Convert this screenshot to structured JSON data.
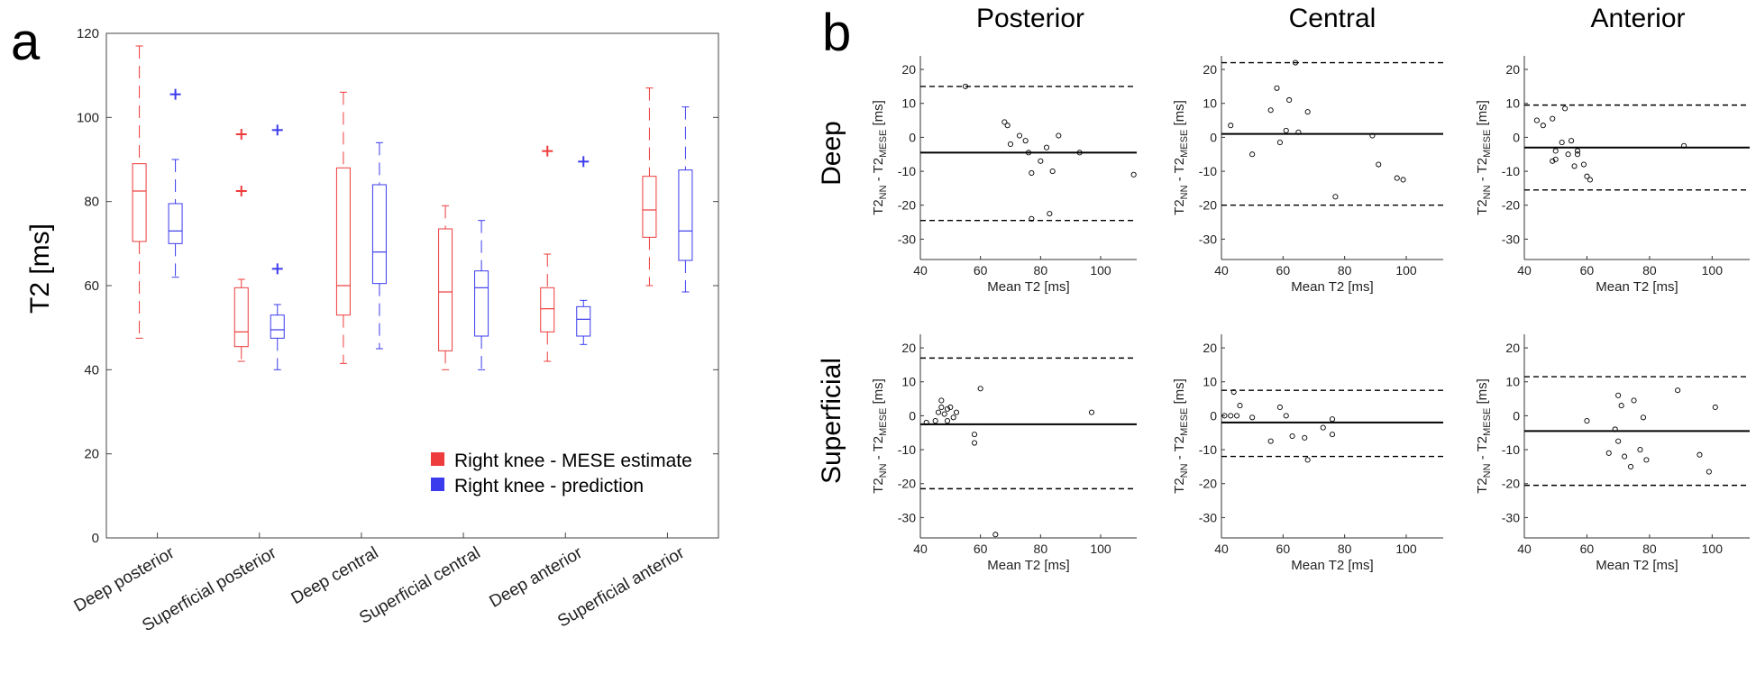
{
  "colors": {
    "mese": "#ee3b3b",
    "prediction": "#3b3bee",
    "ink": "#000000"
  },
  "chart_data": [
    {
      "type": "box",
      "panel_label": "a",
      "title": "",
      "xlabel": "",
      "ylabel": "T2 [ms]",
      "ylim": [
        0,
        120
      ],
      "yticks": [
        0,
        20,
        40,
        60,
        80,
        100,
        120
      ],
      "categories": [
        "Deep posterior",
        "Superficial posterior",
        "Deep central",
        "Superficial central",
        "Deep anterior",
        "Superficial anterior"
      ],
      "legend": {
        "placement": "bottom-right",
        "entries": [
          "Right knee - MESE estimate",
          "Right knee - prediction"
        ]
      },
      "series": [
        {
          "name": "Right knee - MESE estimate",
          "color": "#ee3b3b",
          "boxes": [
            {
              "whisker_low": 47.5,
              "q1": 70.5,
              "median": 82.5,
              "q3": 89,
              "whisker_high": 117,
              "outliers": []
            },
            {
              "whisker_low": 42,
              "q1": 45.5,
              "median": 49,
              "q3": 59.5,
              "whisker_high": 61.5,
              "outliers": [
                96,
                82.5
              ]
            },
            {
              "whisker_low": 41.5,
              "q1": 53,
              "median": 60,
              "q3": 88,
              "whisker_high": 106,
              "outliers": []
            },
            {
              "whisker_low": 40,
              "q1": 44.5,
              "median": 58.5,
              "q3": 73.5,
              "whisker_high": 79,
              "outliers": []
            },
            {
              "whisker_low": 42,
              "q1": 49,
              "median": 54.5,
              "q3": 59.5,
              "whisker_high": 67.5,
              "outliers": [
                92
              ]
            },
            {
              "whisker_low": 60,
              "q1": 71.5,
              "median": 78,
              "q3": 86,
              "whisker_high": 107,
              "outliers": []
            }
          ]
        },
        {
          "name": "Right knee - prediction",
          "color": "#3b3bee",
          "boxes": [
            {
              "whisker_low": 62,
              "q1": 70,
              "median": 73,
              "q3": 79.5,
              "whisker_high": 90,
              "outliers": [
                105.5
              ]
            },
            {
              "whisker_low": 40,
              "q1": 47.5,
              "median": 49.5,
              "q3": 53,
              "whisker_high": 55.5,
              "outliers": [
                97,
                64
              ]
            },
            {
              "whisker_low": 45,
              "q1": 60.5,
              "median": 68,
              "q3": 84,
              "whisker_high": 94,
              "outliers": []
            },
            {
              "whisker_low": 40,
              "q1": 48,
              "median": 59.5,
              "q3": 63.5,
              "whisker_high": 75.5,
              "outliers": []
            },
            {
              "whisker_low": 46,
              "q1": 48,
              "median": 52,
              "q3": 55,
              "whisker_high": 56.5,
              "outliers": [
                89.5
              ]
            },
            {
              "whisker_low": 58.5,
              "q1": 66,
              "median": 73,
              "q3": 87.5,
              "whisker_high": 102.5,
              "outliers": []
            }
          ]
        }
      ]
    },
    {
      "type": "scatter",
      "panel_label": "b",
      "subtype": "bland-altman",
      "xlabel": "Mean T2 [ms]",
      "ylabel": "T2NN - T2MESE [ms]",
      "ylabel_parts": {
        "lhs": "T2",
        "lhs_sub": "NN",
        "minus": " - T2",
        "rhs_sub": "MESE",
        "unit": " [ms]"
      },
      "xlim": [
        40,
        112
      ],
      "ylim": [
        -36,
        24
      ],
      "xticks": [
        40,
        60,
        80,
        100
      ],
      "yticks": [
        -30,
        -20,
        -10,
        0,
        10,
        20
      ],
      "columns": [
        "Posterior",
        "Central",
        "Anterior"
      ],
      "rows": [
        "Deep",
        "Superficial"
      ],
      "panels": [
        {
          "row": "Deep",
          "column": "Posterior",
          "mean": -4.5,
          "loa": [
            15,
            -24.5
          ],
          "points": [
            [
              55,
              15
            ],
            [
              68,
              4.5
            ],
            [
              69,
              3.5
            ],
            [
              70,
              -2
            ],
            [
              73,
              0.5
            ],
            [
              75,
              -1
            ],
            [
              76,
              -4.5
            ],
            [
              77,
              -10.5
            ],
            [
              77,
              -24
            ],
            [
              80,
              -7
            ],
            [
              82,
              -3
            ],
            [
              83,
              -22.5
            ],
            [
              84,
              -10
            ],
            [
              86,
              0.5
            ],
            [
              93,
              -4.5
            ],
            [
              111,
              -11
            ]
          ]
        },
        {
          "row": "Deep",
          "column": "Central",
          "mean": 1,
          "loa": [
            22,
            -20
          ],
          "points": [
            [
              43,
              3.5
            ],
            [
              50,
              -5
            ],
            [
              56,
              8
            ],
            [
              58,
              14.5
            ],
            [
              59,
              -1.5
            ],
            [
              61,
              2
            ],
            [
              62,
              11
            ],
            [
              64,
              22
            ],
            [
              65,
              1.5
            ],
            [
              68,
              7.5
            ],
            [
              77,
              -17.5
            ],
            [
              89,
              0.5
            ],
            [
              91,
              -8
            ],
            [
              97,
              -12
            ],
            [
              99,
              -12.5
            ]
          ]
        },
        {
          "row": "Deep",
          "column": "Anterior",
          "mean": -3,
          "loa": [
            9.5,
            -15.5
          ],
          "points": [
            [
              44,
              5
            ],
            [
              46,
              3.5
            ],
            [
              49,
              5.5
            ],
            [
              49,
              -7
            ],
            [
              50,
              -4
            ],
            [
              50,
              -6.5
            ],
            [
              52,
              -1.5
            ],
            [
              53,
              8.5
            ],
            [
              54,
              -5
            ],
            [
              55,
              -1
            ],
            [
              56,
              -8.5
            ],
            [
              57,
              -4
            ],
            [
              57,
              -5
            ],
            [
              59,
              -8
            ],
            [
              60,
              -11.5
            ],
            [
              61,
              -12.5
            ],
            [
              91,
              -2.5
            ]
          ]
        },
        {
          "row": "Superficial",
          "column": "Posterior",
          "mean": -2.5,
          "loa": [
            17,
            -21.5
          ],
          "points": [
            [
              42,
              -2
            ],
            [
              45,
              -1.5
            ],
            [
              46,
              1
            ],
            [
              47,
              4.5
            ],
            [
              47,
              2.5
            ],
            [
              48,
              0.5
            ],
            [
              49,
              2
            ],
            [
              49,
              -1.5
            ],
            [
              50,
              2.5
            ],
            [
              51,
              -0.5
            ],
            [
              52,
              1
            ],
            [
              58,
              -5.5
            ],
            [
              58,
              -8
            ],
            [
              60,
              8
            ],
            [
              65,
              -35
            ],
            [
              97,
              1
            ]
          ]
        },
        {
          "row": "Superficial",
          "column": "Central",
          "mean": -2,
          "loa": [
            7.5,
            -12
          ],
          "points": [
            [
              41,
              0
            ],
            [
              43,
              0
            ],
            [
              44,
              7
            ],
            [
              45,
              0
            ],
            [
              46,
              3
            ],
            [
              50,
              -0.5
            ],
            [
              56,
              -7.5
            ],
            [
              59,
              2.5
            ],
            [
              61,
              0
            ],
            [
              63,
              -6
            ],
            [
              67,
              -6.5
            ],
            [
              68,
              -13
            ],
            [
              73,
              -3.5
            ],
            [
              76,
              -5.5
            ],
            [
              76,
              -1
            ]
          ]
        },
        {
          "row": "Superficial",
          "column": "Anterior",
          "mean": -4.5,
          "loa": [
            11.5,
            -20.5
          ],
          "points": [
            [
              60,
              -1.5
            ],
            [
              67,
              -11
            ],
            [
              69,
              -4
            ],
            [
              70,
              6
            ],
            [
              70,
              -7.5
            ],
            [
              71,
              3
            ],
            [
              72,
              -12
            ],
            [
              74,
              -15
            ],
            [
              75,
              4.5
            ],
            [
              77,
              -10
            ],
            [
              78,
              -0.5
            ],
            [
              79,
              -13
            ],
            [
              89,
              7.5
            ],
            [
              96,
              -11.5
            ],
            [
              99,
              -16.5
            ],
            [
              101,
              2.5
            ]
          ]
        }
      ]
    }
  ]
}
